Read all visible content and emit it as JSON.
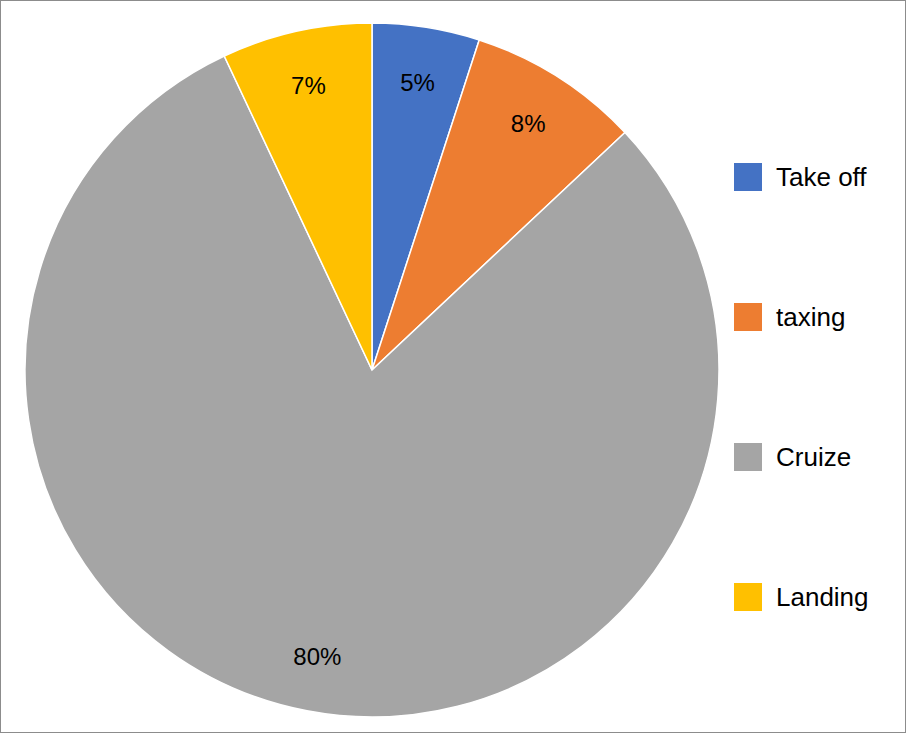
{
  "chart_data": {
    "type": "pie",
    "categories": [
      "Take off",
      "taxing",
      "Cruize",
      "Landing"
    ],
    "values": [
      5,
      8,
      80,
      7
    ],
    "value_labels": [
      "5%",
      "8%",
      "80%",
      "7%"
    ],
    "colors": [
      "#4472c4",
      "#ed7d31",
      "#a5a5a5",
      "#ffc000"
    ],
    "data_labels": true,
    "legend": "right"
  }
}
